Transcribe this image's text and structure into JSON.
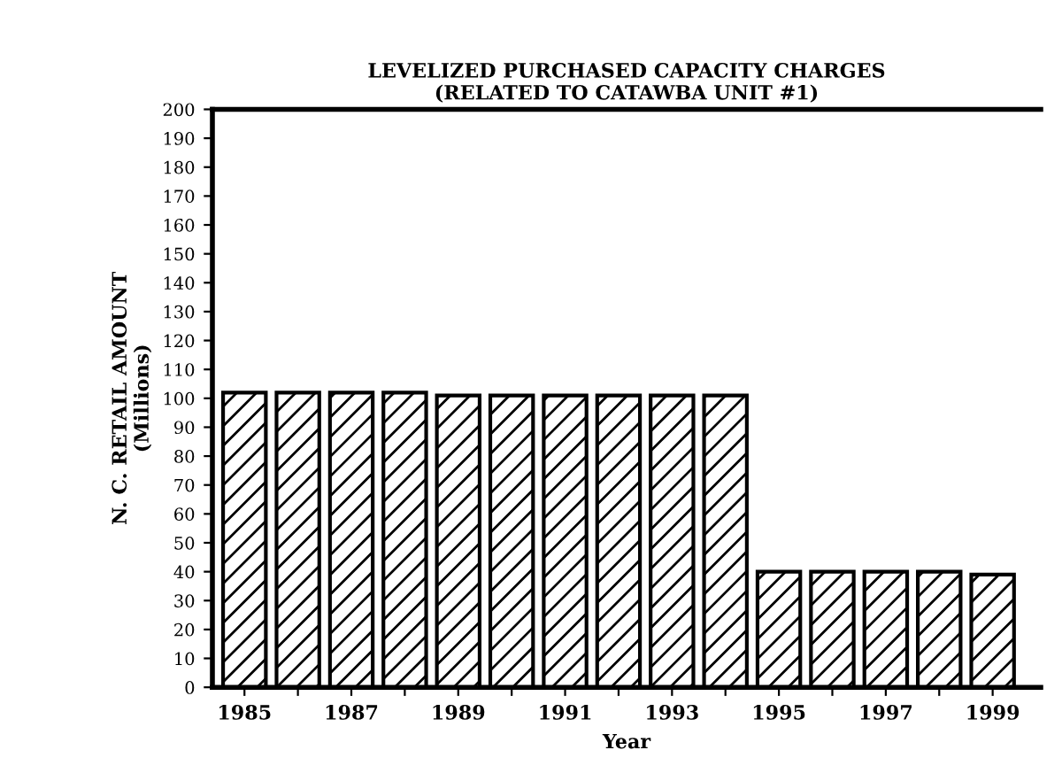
{
  "chart_data": {
    "type": "bar",
    "title": "LEVELIZED PURCHASED CAPACITY CHARGES\n(RELATED TO CATAWBA UNIT #1)",
    "xlabel": "Year",
    "ylabel": "N. C. RETAIL AMOUNT\n(Millions)",
    "categories": [
      "1985",
      null,
      "1987",
      null,
      "1989",
      null,
      "1991",
      null,
      "1993",
      null,
      "1995",
      null,
      "1997",
      null,
      "1999"
    ],
    "values": [
      102,
      102,
      102,
      102,
      101,
      101,
      101,
      101,
      101,
      101,
      40,
      40,
      40,
      40,
      39
    ],
    "color": "#000000",
    "ylim": [
      0,
      200
    ],
    "yticks": [
      0,
      10,
      20,
      30,
      40,
      50,
      60,
      70,
      80,
      90,
      100,
      110,
      120,
      130,
      140,
      150,
      160,
      170,
      180,
      190,
      200
    ],
    "grid": false,
    "legend": false
  }
}
